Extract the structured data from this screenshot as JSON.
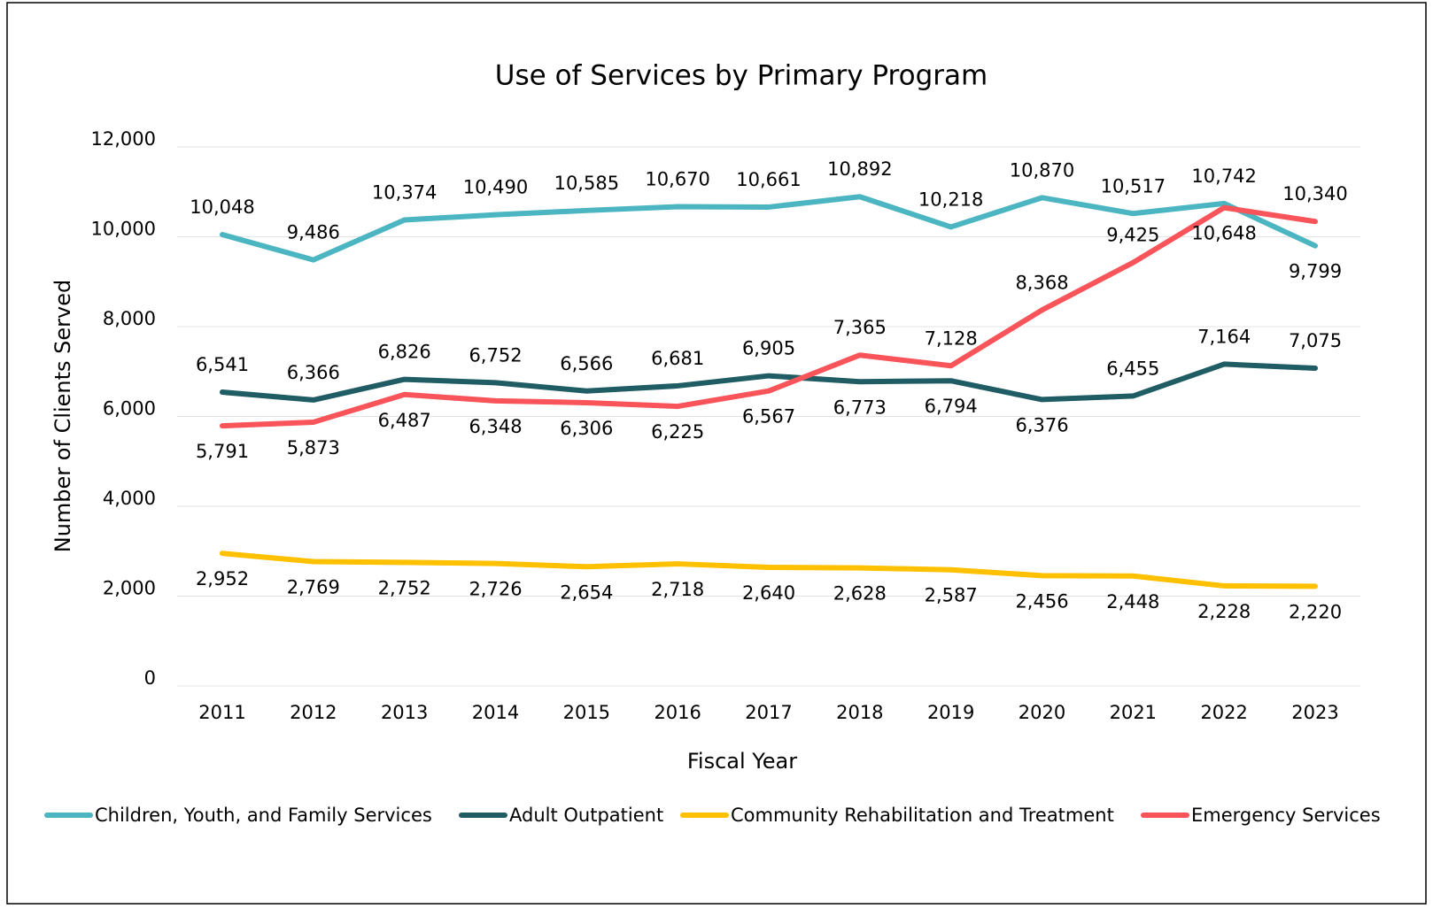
{
  "chart_data": {
    "type": "line",
    "title": "Use of Services by Primary Program",
    "xlabel": "Fiscal Year",
    "ylabel": "Number of Clients Served",
    "categories": [
      "2011",
      "2012",
      "2013",
      "2014",
      "2015",
      "2016",
      "2017",
      "2018",
      "2019",
      "2020",
      "2021",
      "2022",
      "2023"
    ],
    "ylim": [
      0,
      12000
    ],
    "yticks": [
      0,
      {
        "value": 2000,
        "label": "2,000"
      },
      {
        "value": 4000,
        "label": "4,000"
      },
      {
        "value": 6000,
        "label": "6,000"
      },
      {
        "value": 8000,
        "label": "8,000"
      },
      {
        "value": 10000,
        "label": "10,000"
      },
      {
        "value": 12000,
        "label": "12,000"
      }
    ],
    "grid": true,
    "legend": "bottom",
    "series": [
      {
        "name": "Children, Youth, and Family Services",
        "color": "#4bb5c1",
        "values": [
          10048,
          9486,
          10374,
          10490,
          10585,
          10670,
          10661,
          10892,
          10218,
          10870,
          10517,
          10742,
          9799
        ],
        "value_labels": [
          "10,048",
          "9,486",
          "10,374",
          "10,490",
          "10,585",
          "10,670",
          "10,661",
          "10,892",
          "10,218",
          "10,870",
          "10,517",
          "10,742",
          "9,799"
        ]
      },
      {
        "name": "Adult Outpatient",
        "color": "#1f5c63",
        "values": [
          6541,
          6366,
          6826,
          6752,
          6566,
          6681,
          6905,
          6773,
          6794,
          6376,
          6455,
          7164,
          7075
        ],
        "value_labels": [
          "6,541",
          "6,366",
          "6,826",
          "6,752",
          "6,566",
          "6,681",
          "6,905",
          "6,773",
          "6,794",
          "6,376",
          "6,455",
          "7,164",
          "7,075"
        ]
      },
      {
        "name": "Community Rehabilitation and Treatment",
        "color": "#ffc000",
        "values": [
          2952,
          2769,
          2752,
          2726,
          2654,
          2718,
          2640,
          2628,
          2587,
          2456,
          2448,
          2228,
          2220
        ],
        "value_labels": [
          "2,952",
          "2,769",
          "2,752",
          "2,726",
          "2,654",
          "2,718",
          "2,640",
          "2,628",
          "2,587",
          "2,456",
          "2,448",
          "2,228",
          "2,220"
        ]
      },
      {
        "name": "Emergency Services",
        "color": "#f8545a",
        "values": [
          5791,
          5873,
          6487,
          6348,
          6306,
          6225,
          6567,
          7365,
          7128,
          8368,
          9425,
          10648,
          10340
        ],
        "value_labels": [
          "5,791",
          "5,873",
          "6,487",
          "6,348",
          "6,306",
          "6,225",
          "6,567",
          "7,365",
          "7,128",
          "8,368",
          "9,425",
          "10,648",
          "10,340"
        ]
      }
    ]
  }
}
